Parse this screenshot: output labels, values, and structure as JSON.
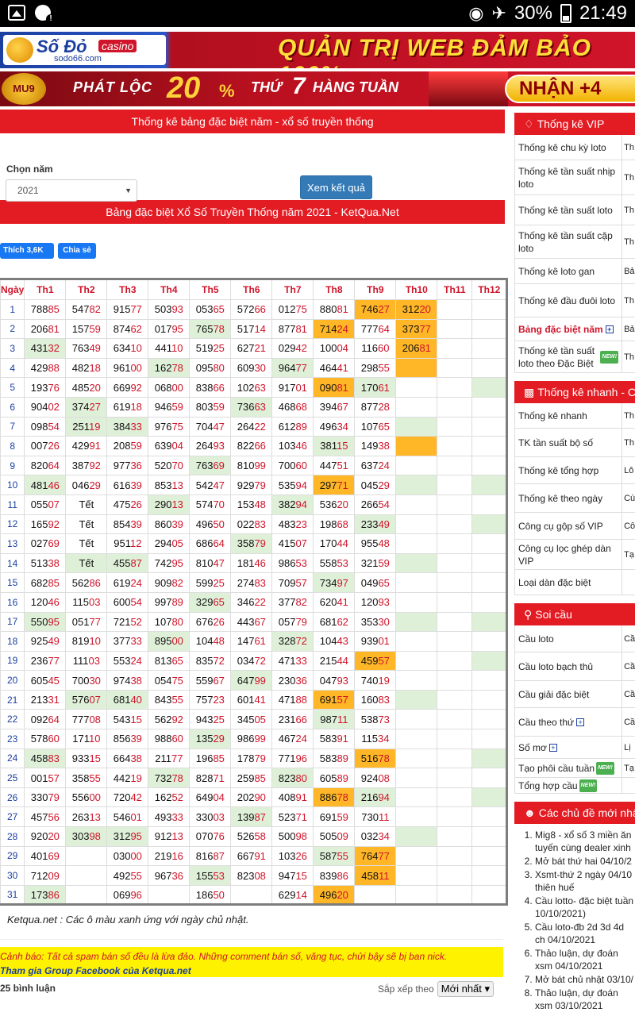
{
  "status": {
    "battery": "30%",
    "time": "21:49"
  },
  "banner1": {
    "brand": "Số Đỏ",
    "casino": "casino",
    "site": "sodo66.com",
    "slogan": "QUẢN TRỊ WEB ĐẢM BẢO 100%"
  },
  "banner2": {
    "badge": "MU9",
    "t1": "PHÁT LỘC",
    "pct": "20",
    "pctsign": "%",
    "t2": "THỨ",
    "seven": "7",
    "t3": "HÀNG TUẦN",
    "cta": "NHẬN +4"
  },
  "main": {
    "title": "Thống kê bảng đặc biệt năm - xổ số truyền thống",
    "year_label": "Chọn năm",
    "year_value": "2021",
    "submit": "Xem kết quả",
    "table_title": "Bảng đặc biệt Xổ Số Truyền Thống năm 2021 - KetQua.Net",
    "fb_like": "Thích 3,6K",
    "fb_share": "Chia sẻ",
    "headers": [
      "Ngày",
      "Th1",
      "Th2",
      "Th3",
      "Th4",
      "Th5",
      "Th6",
      "Th7",
      "Th8",
      "Th9",
      "Th10",
      "Th11",
      "Th12"
    ],
    "note": "Ketqua.net : Các ô màu xanh ứng với ngày chủ nhật.",
    "warn_label": "Cảnh báo:",
    "warn_text": " Tất cả spam bán số đều là lừa đảo. Những comment bán số, văng tục, chửi bậy sẽ bị ban nick.",
    "join": "Tham gia Group Facebook của Ketqua.net",
    "comments": "25 bình luận",
    "sort_label": "Sắp xếp theo",
    "sort_value": "Mới nhất"
  },
  "rows": [
    {
      "d": "1",
      "v": [
        "78885",
        "54782",
        "91577",
        "50393",
        "05365",
        "57266",
        "01275",
        "88081",
        "74627",
        "31220",
        "",
        ""
      ],
      "c": "........oo.."
    },
    {
      "d": "2",
      "v": [
        "20681",
        "15759",
        "87462",
        "01795",
        "76578",
        "51714",
        "87781",
        "71424",
        "77764",
        "37377",
        "",
        ""
      ],
      "c": "....g..o.o.."
    },
    {
      "d": "3",
      "v": [
        "43132",
        "76349",
        "63410",
        "44110",
        "51925",
        "62721",
        "02942",
        "10004",
        "11660",
        "20681",
        "",
        ""
      ],
      "c": "g........o.."
    },
    {
      "d": "4",
      "v": [
        "42988",
        "48218",
        "96100",
        "16278",
        "09580",
        "60930",
        "96477",
        "46441",
        "29855",
        "",
        "",
        ""
      ],
      "c": "...g..g..o.."
    },
    {
      "d": "5",
      "v": [
        "19376",
        "48520",
        "66992",
        "06800",
        "83866",
        "10263",
        "91701",
        "09081",
        "17061",
        "",
        "",
        ""
      ],
      "c": ".......og..g"
    },
    {
      "d": "6",
      "v": [
        "90402",
        "37427",
        "61918",
        "94659",
        "80359",
        "73663",
        "46868",
        "39467",
        "87728",
        "",
        "",
        ""
      ],
      "c": ".g...g......"
    },
    {
      "d": "7",
      "v": [
        "09854",
        "25119",
        "38433",
        "97675",
        "70447",
        "26422",
        "61289",
        "49634",
        "10765",
        "",
        "",
        ""
      ],
      "c": ".gg......g.."
    },
    {
      "d": "8",
      "v": [
        "00726",
        "42991",
        "20859",
        "63904",
        "26493",
        "82266",
        "10346",
        "38115",
        "14938",
        "",
        "",
        ""
      ],
      "c": ".......g.o.."
    },
    {
      "d": "9",
      "v": [
        "82064",
        "38792",
        "97736",
        "52070",
        "76369",
        "81099",
        "70060",
        "44751",
        "63724",
        "",
        "",
        ""
      ],
      "c": "....g......."
    },
    {
      "d": "10",
      "v": [
        "48146",
        "04629",
        "61639",
        "85313",
        "54247",
        "92979",
        "53594",
        "29771",
        "04529",
        "",
        "",
        ""
      ],
      "c": "g......o.g.g"
    },
    {
      "d": "11",
      "v": [
        "05507",
        "Tết",
        "47526",
        "29013",
        "57470",
        "15348",
        "38294",
        "53620",
        "26654",
        "",
        "",
        ""
      ],
      "c": "...g..g....."
    },
    {
      "d": "12",
      "v": [
        "16592",
        "Tết",
        "85439",
        "86039",
        "49650",
        "02283",
        "48323",
        "19868",
        "23349",
        "",
        "",
        ""
      ],
      "c": "........g..g"
    },
    {
      "d": "13",
      "v": [
        "02769",
        "Tết",
        "95112",
        "29405",
        "68664",
        "35879",
        "41507",
        "17044",
        "95548",
        "",
        "",
        ""
      ],
      "c": ".....g......"
    },
    {
      "d": "14",
      "v": [
        "51338",
        "Tết",
        "45587",
        "74295",
        "81047",
        "18146",
        "98653",
        "55853",
        "32159",
        "",
        "",
        ""
      ],
      "c": ".gg......g.."
    },
    {
      "d": "15",
      "v": [
        "68285",
        "56286",
        "61924",
        "90982",
        "59925",
        "27483",
        "70957",
        "73497",
        "04965",
        "",
        "",
        ""
      ],
      "c": ".......g...."
    },
    {
      "d": "16",
      "v": [
        "12046",
        "11503",
        "60054",
        "99789",
        "32965",
        "34622",
        "37782",
        "62041",
        "12093",
        "",
        "",
        ""
      ],
      "c": "....g......."
    },
    {
      "d": "17",
      "v": [
        "55095",
        "05177",
        "72152",
        "10780",
        "67626",
        "44367",
        "05779",
        "68162",
        "35330",
        "",
        "",
        ""
      ],
      "c": "g........g.g"
    },
    {
      "d": "18",
      "v": [
        "92549",
        "81910",
        "37733",
        "89500",
        "10448",
        "14761",
        "32872",
        "10443",
        "93901",
        "",
        "",
        ""
      ],
      "c": "...g..g....."
    },
    {
      "d": "19",
      "v": [
        "23677",
        "11103",
        "55324",
        "81365",
        "83572",
        "03472",
        "47133",
        "21544",
        "45957",
        "",
        "",
        ""
      ],
      "c": "........o..g"
    },
    {
      "d": "20",
      "v": [
        "60545",
        "70030",
        "97438",
        "05475",
        "55967",
        "64799",
        "23036",
        "04793",
        "74019",
        "",
        "",
        ""
      ],
      "c": ".....g......"
    },
    {
      "d": "21",
      "v": [
        "21331",
        "57607",
        "68140",
        "84355",
        "75723",
        "60141",
        "47188",
        "69157",
        "16083",
        "",
        "",
        ""
      ],
      "c": ".gg....o.g.."
    },
    {
      "d": "22",
      "v": [
        "09264",
        "77708",
        "54315",
        "56292",
        "94325",
        "34505",
        "23166",
        "98711",
        "53873",
        "",
        "",
        ""
      ],
      "c": ".......g...."
    },
    {
      "d": "23",
      "v": [
        "57860",
        "17110",
        "85639",
        "98860",
        "13529",
        "98699",
        "46724",
        "58391",
        "11534",
        "",
        "",
        ""
      ],
      "c": "....g......."
    },
    {
      "d": "24",
      "v": [
        "45883",
        "93315",
        "66438",
        "21177",
        "19685",
        "17879",
        "77196",
        "58389",
        "51678",
        "",
        "",
        ""
      ],
      "c": "g.......o..g"
    },
    {
      "d": "25",
      "v": [
        "00157",
        "35855",
        "44219",
        "73278",
        "82871",
        "25985",
        "82380",
        "60589",
        "92408",
        "",
        "",
        ""
      ],
      "c": "...g..g....."
    },
    {
      "d": "26",
      "v": [
        "33079",
        "55600",
        "72042",
        "16252",
        "64904",
        "20290",
        "40891",
        "88678",
        "21694",
        "",
        "",
        ""
      ],
      "c": ".......og..g"
    },
    {
      "d": "27",
      "v": [
        "45756",
        "26313",
        "54601",
        "49333",
        "33003",
        "13987",
        "52371",
        "69159",
        "73011",
        "",
        "",
        ""
      ],
      "c": ".....g......"
    },
    {
      "d": "28",
      "v": [
        "92020",
        "30398",
        "31295",
        "91213",
        "07076",
        "52658",
        "50098",
        "50509",
        "03234",
        "",
        "",
        ""
      ],
      "c": ".gg......g.."
    },
    {
      "d": "29",
      "v": [
        "40169",
        "",
        "03000",
        "21916",
        "81687",
        "66791",
        "10326",
        "58755",
        "76477",
        "",
        "",
        ""
      ],
      "c": ".......go..."
    },
    {
      "d": "30",
      "v": [
        "71209",
        "",
        "49255",
        "96736",
        "15553",
        "82308",
        "94715",
        "83986",
        "45811",
        "",
        "",
        ""
      ],
      "c": "....g...o..."
    },
    {
      "d": "31",
      "v": [
        "17386",
        "",
        "06996",
        "",
        "18650",
        "",
        "62914",
        "49620",
        "",
        "",
        "",
        ""
      ],
      "c": "g......o...."
    }
  ],
  "sidebar": {
    "vip_title": "Thống kê VIP",
    "vip": [
      {
        "a": "Thống kê chu kỳ loto",
        "b": "Th"
      },
      {
        "a": "Thống kê tần suất nhịp loto",
        "b": "Th đặ"
      },
      {
        "a": "Thống kê tần suất loto",
        "b": "Th lot"
      },
      {
        "a": "Thống kê tần suất cặp loto",
        "b": "Th dà"
      },
      {
        "a": "Thống kê loto gan",
        "b": "Bả"
      },
      {
        "a": "Thống kê đầu đuôi loto",
        "b": "Th ⊞"
      },
      {
        "a": "Bảng đặc biệt năm",
        "b": "Bả"
      },
      {
        "a": "Thống kê tần suất loto theo Đặc Biệt",
        "b": "Th th"
      }
    ],
    "fast_title": "Thống kê nhanh - C",
    "fast": [
      {
        "a": "Thống kê nhanh",
        "b": "Th"
      },
      {
        "a": "TK tần suất bộ số",
        "b": "Th"
      },
      {
        "a": "Thống kê tổng hợp",
        "b": "Lô"
      },
      {
        "a": "Thống kê theo ngày",
        "b": "Cù"
      },
      {
        "a": "Công cụ gộp số VIP",
        "b": "Cô"
      },
      {
        "a": "Công cụ lọc ghép dàn VIP",
        "b": "Tạ bi"
      },
      {
        "a": "Loại dàn đặc biệt",
        "b": ""
      }
    ],
    "soi_title": "Soi cầu",
    "soi": [
      {
        "a": "Cầu loto",
        "b": "Cầ"
      },
      {
        "a": "Cầu loto bạch thủ",
        "b": "Cầ"
      },
      {
        "a": "Cầu giải đặc biệt",
        "b": "Cầ"
      },
      {
        "a": "Cầu theo thứ",
        "b": "Cầ"
      },
      {
        "a": "Số mơ",
        "b": "Lị"
      },
      {
        "a": "Tạo phôi cầu tuần",
        "b": "Tạ"
      },
      {
        "a": "Tổng hợp cầu",
        "b": ""
      }
    ],
    "new_label": "NEW!",
    "topics_title": "Các chủ đề mới nhấ",
    "topics": [
      "Mig8 - xổ số 3 miền ăn tuyến cùng dealer xinh",
      "Mở bát thứ hai 04/10/2",
      "Xsmt-thứ 2 ngày 04/10 thiên huế",
      "Cầu lotto- đặc biệt tuần 10/10/2021)",
      "Cầu loto-đb 2d 3d 4d ch 04/10/2021",
      "Thảo luận, dự đoán xsm 04/10/2021",
      "Mở bát chủ nhật 03/10/",
      "Thảo luận, dự đoán xsm 03/10/2021"
    ]
  }
}
